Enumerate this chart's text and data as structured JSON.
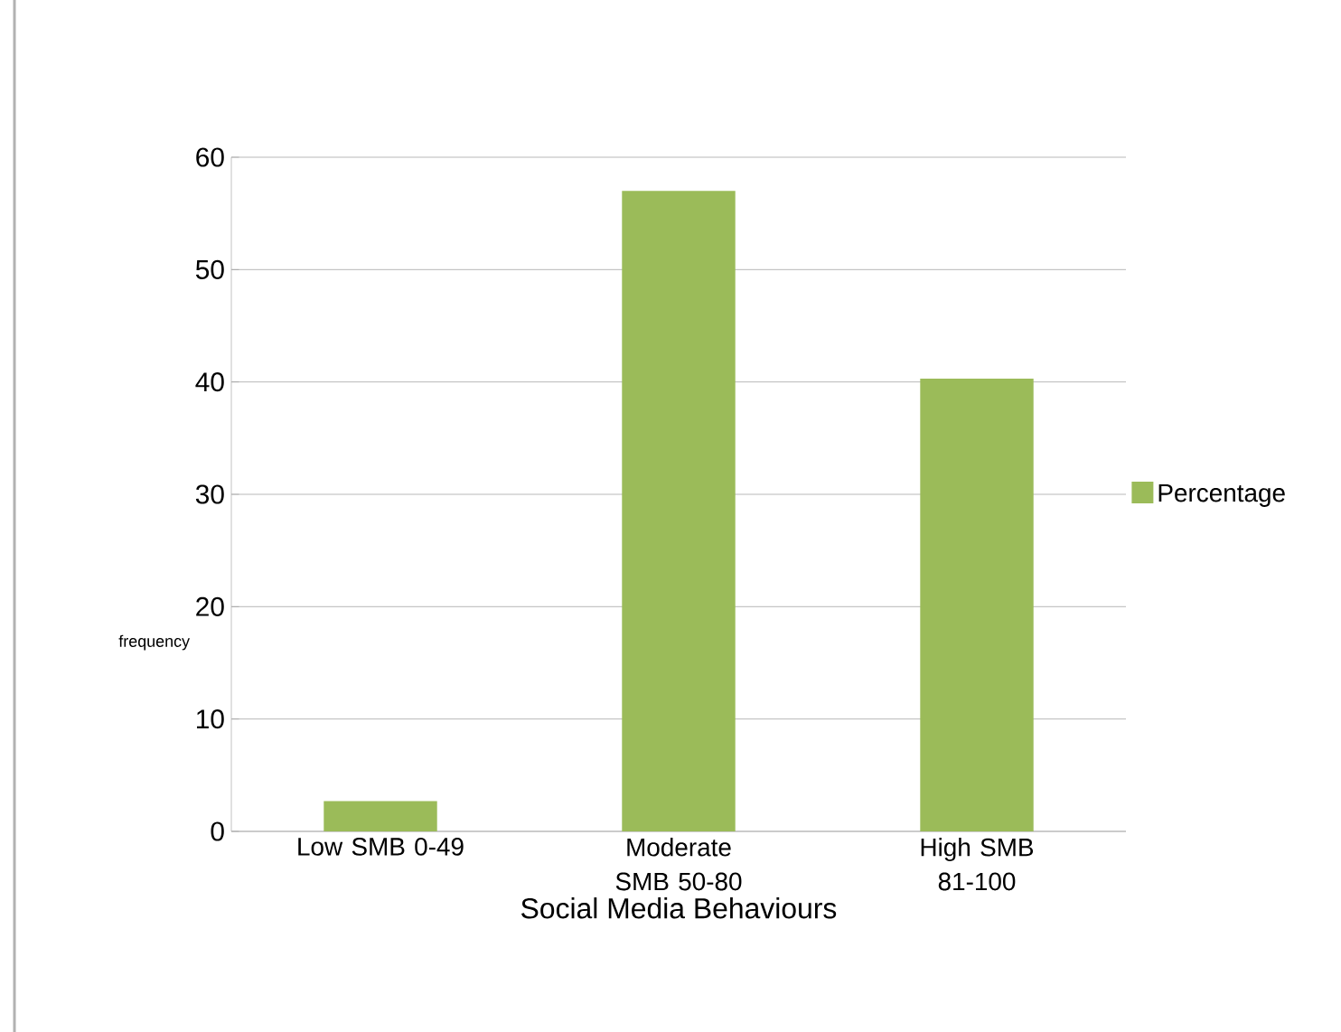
{
  "chart_data": {
    "type": "bar",
    "xlabel": "Social Media Behaviours",
    "ylabel": "frequency",
    "categories": [
      "Low SMB   0-49",
      "Moderate SMB   50-80",
      "High SMB 81-100"
    ],
    "series": [
      {
        "name": "Percentage",
        "color": "#9bbb59",
        "values": [
          2.7,
          57,
          40.3
        ]
      }
    ],
    "ylim": [
      0,
      60
    ],
    "yticks": [
      0,
      10,
      20,
      30,
      40,
      50,
      60
    ],
    "grid": "y",
    "legend": "right"
  }
}
